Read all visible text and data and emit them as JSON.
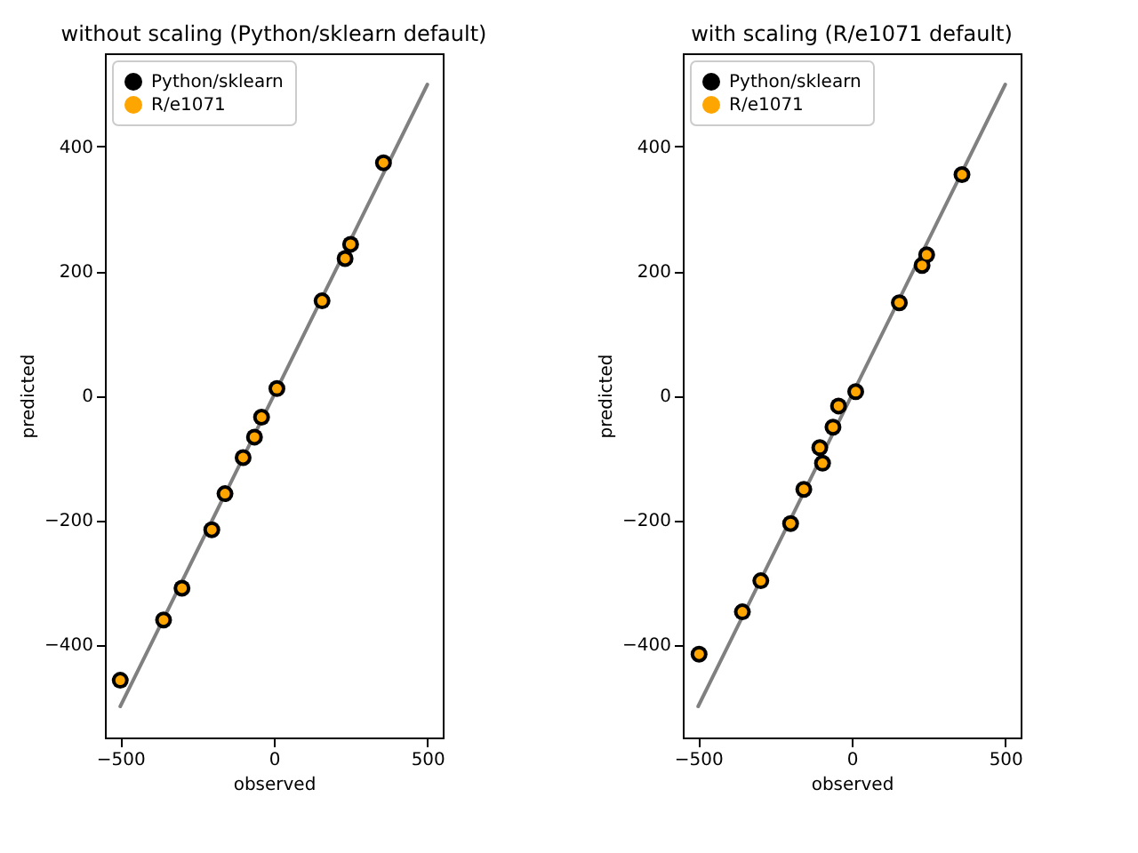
{
  "chart_data": [
    {
      "type": "scatter",
      "title": "without scaling (Python/sklearn default)",
      "xlabel": "observed",
      "ylabel": "predicted",
      "xlim": [
        -550,
        550
      ],
      "ylim": [
        -550,
        550
      ],
      "xticks": [
        -500,
        0,
        500
      ],
      "yticks": [
        -400,
        -200,
        0,
        200,
        400
      ],
      "grid": false,
      "legend": "top left",
      "marker": "circle",
      "series": [
        {
          "type": "line",
          "color": "#808080",
          "marker": "none",
          "x": [
            -500,
            500
          ],
          "values": [
            -500,
            500
          ]
        },
        {
          "name": "Python/sklearn",
          "color": "#000000",
          "x": [
            357,
            250,
            232,
            157,
            10,
            -40,
            -63,
            -100,
            -159,
            -202,
            -299,
            -359,
            -500
          ],
          "values": [
            374,
            243,
            220,
            152,
            11,
            -35,
            -67,
            -100,
            -158,
            -216,
            -310,
            -361,
            -458
          ]
        },
        {
          "name": "R/e1071",
          "color": "#ffa500",
          "x": [
            357,
            250,
            232,
            157,
            10,
            -40,
            -63,
            -100,
            -159,
            -202,
            -299,
            -359,
            -500
          ],
          "values": [
            374,
            243,
            220,
            152,
            11,
            -35,
            -67,
            -100,
            -158,
            -216,
            -310,
            -361,
            -458
          ]
        }
      ]
    },
    {
      "type": "scatter",
      "title": "with scaling (R/e1071 default)",
      "xlabel": "observed",
      "ylabel": "predicted",
      "xlim": [
        -550,
        550
      ],
      "ylim": [
        -550,
        550
      ],
      "xticks": [
        -500,
        0,
        500
      ],
      "yticks": [
        -400,
        -200,
        0,
        200,
        400
      ],
      "grid": false,
      "legend": "top left",
      "marker": "circle",
      "series": [
        {
          "type": "line",
          "color": "#808080",
          "marker": "none",
          "x": [
            -500,
            500
          ],
          "values": [
            -500,
            500
          ]
        },
        {
          "name": "Python/sklearn",
          "color": "#000000",
          "x": [
            359,
            244,
            229,
            155,
            13,
            -43,
            -61,
            -104,
            -95,
            -156,
            -199,
            -296,
            -356,
            -497
          ],
          "values": [
            355,
            226,
            209,
            149,
            6,
            -17,
            -51,
            -84,
            -109,
            -151,
            -206,
            -298,
            -348,
            -416
          ]
        },
        {
          "name": "R/e1071",
          "color": "#ffa500",
          "x": [
            359,
            244,
            229,
            155,
            13,
            -43,
            -61,
            -104,
            -95,
            -156,
            -199,
            -296,
            -356,
            -497
          ],
          "values": [
            355,
            226,
            209,
            149,
            6,
            -17,
            -51,
            -84,
            -109,
            -151,
            -206,
            -298,
            -348,
            -416
          ]
        }
      ]
    }
  ]
}
